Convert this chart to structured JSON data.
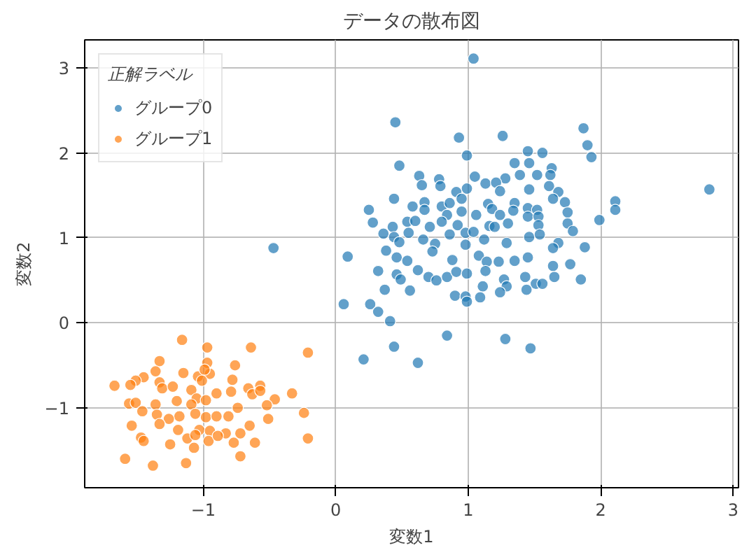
{
  "chart_data": {
    "type": "scatter",
    "title": "データの散布図",
    "xlabel": "変数1",
    "ylabel": "変数2",
    "legend_title": "正解ラベル",
    "legend": "top left",
    "grid": true,
    "marker": "circle",
    "xlim": [
      -1.895,
      3.04
    ],
    "ylim": [
      -1.94,
      3.33
    ],
    "xticks": [
      {
        "value": -1,
        "label": "−1"
      },
      0,
      1,
      2,
      3
    ],
    "yticks": [
      {
        "value": -1,
        "label": "−1"
      },
      0,
      1,
      2,
      3
    ],
    "series": [
      {
        "name": "グループ0",
        "color": "#1f77b4",
        "x": [
          1.04,
          0.45,
          0.93,
          1.26,
          1.87,
          1.9,
          1.93,
          0.99,
          1.45,
          1.56,
          0.48,
          1.46,
          1.35,
          1.63,
          1.62,
          0.63,
          0.78,
          1.05,
          1.28,
          1.39,
          1.52,
          0.65,
          0.79,
          1.13,
          1.21,
          1.61,
          1.46,
          1.68,
          2.82,
          0.91,
          0.99,
          1.24,
          0.44,
          1.64,
          1.73,
          2.11,
          2.11,
          0.67,
          0.8,
          0.86,
          0.95,
          1.15,
          1.35,
          0.25,
          0.58,
          0.67,
          0.95,
          1.18,
          1.34,
          1.45,
          1.52,
          1.75,
          0.84,
          1.06,
          1.24,
          1.45,
          1.53,
          1.75,
          1.99,
          0.28,
          0.54,
          0.6,
          0.71,
          1.16,
          1.2,
          1.3,
          1.53,
          0.8,
          0.92,
          0.43,
          0.55,
          0.66,
          0.86,
          0.98,
          1.04,
          1.12,
          1.46,
          1.54,
          1.79,
          0.36,
          0.44,
          0.48,
          0.75,
          0.98,
          1.29,
          1.68,
          1.88,
          1.64,
          -0.47,
          0.09,
          0.38,
          0.46,
          0.54,
          0.73,
          0.88,
          1.08,
          1.14,
          1.23,
          1.35,
          1.45,
          1.77,
          1.64,
          0.32,
          0.62,
          0.7,
          0.76,
          0.84,
          0.91,
          0.99,
          1.13,
          1.27,
          1.43,
          1.65,
          1.85,
          1.51,
          1.56,
          0.46,
          0.49,
          1.11,
          1.29,
          0.37,
          0.56,
          1.24,
          1.44,
          0.9,
          0.98,
          0.99,
          1.09,
          0.06,
          0.26,
          0.32,
          0.41,
          0.84,
          1.28,
          0.44,
          1.47,
          0.21,
          0.62
        ],
        "values": [
          3.11,
          2.36,
          2.18,
          2.2,
          2.29,
          2.09,
          1.95,
          1.97,
          2.02,
          2.0,
          1.85,
          1.88,
          1.88,
          1.82,
          1.74,
          1.73,
          1.69,
          1.72,
          1.7,
          1.74,
          1.74,
          1.62,
          1.61,
          1.64,
          1.65,
          1.61,
          1.57,
          1.54,
          1.57,
          1.54,
          1.58,
          1.55,
          1.46,
          1.46,
          1.42,
          1.43,
          1.33,
          1.42,
          1.37,
          1.41,
          1.46,
          1.4,
          1.41,
          1.33,
          1.37,
          1.33,
          1.31,
          1.34,
          1.32,
          1.35,
          1.33,
          1.3,
          1.27,
          1.27,
          1.27,
          1.25,
          1.25,
          1.17,
          1.21,
          1.18,
          1.19,
          1.2,
          1.13,
          1.14,
          1.13,
          1.17,
          1.15,
          1.19,
          1.15,
          1.13,
          1.06,
          0.98,
          1.04,
          1.06,
          1.07,
          0.98,
          1.01,
          1.04,
          1.08,
          1.05,
          1.01,
          0.95,
          0.93,
          0.92,
          0.94,
          0.94,
          0.89,
          0.88,
          0.88,
          0.78,
          0.85,
          0.77,
          0.73,
          0.84,
          0.74,
          0.79,
          0.72,
          0.72,
          0.73,
          0.77,
          0.69,
          0.67,
          0.61,
          0.62,
          0.54,
          0.5,
          0.54,
          0.6,
          0.58,
          0.61,
          0.51,
          0.54,
          0.54,
          0.51,
          0.46,
          0.46,
          0.57,
          0.51,
          0.43,
          0.43,
          0.39,
          0.38,
          0.36,
          0.39,
          0.32,
          0.31,
          0.25,
          0.3,
          0.22,
          0.22,
          0.13,
          0.02,
          -0.15,
          -0.19,
          -0.28,
          -0.3,
          -0.43,
          -0.47
        ]
      },
      {
        "name": "グループ1",
        "color": "#ff7f0e",
        "x": [
          -1.16,
          -0.97,
          -0.64,
          -0.21,
          -1.33,
          -0.97,
          -0.76,
          -1.36,
          -1.15,
          -1.04,
          -0.95,
          -0.78,
          -1.45,
          -1.51,
          -1.55,
          -1.67,
          -1.33,
          -1.31,
          -1.23,
          -1.01,
          -0.57,
          -0.66,
          -1.09,
          -0.9,
          -0.79,
          -0.63,
          -0.57,
          -0.33,
          -0.46,
          -1.05,
          -1.2,
          -1.56,
          -1.51,
          -1.36,
          -1.09,
          -0.98,
          -0.74,
          -0.52,
          -1.46,
          -1.35,
          -1.18,
          -1.26,
          -1.06,
          -0.98,
          -0.9,
          -0.81,
          -0.24,
          -1.33,
          -0.51,
          -1.54,
          -1.19,
          -1.03,
          -0.95,
          -0.83,
          -0.72,
          -0.65,
          -1.47,
          -1.45,
          -1.12,
          -1.06,
          -0.96,
          -0.89,
          -0.77,
          -0.61,
          -0.21,
          -1.25,
          -1.07,
          -0.72,
          -1.59,
          -1.13,
          -1.38,
          -0.99
        ],
        "values": [
          -0.2,
          -0.29,
          -0.29,
          -0.35,
          -0.45,
          -0.47,
          -0.5,
          -0.57,
          -0.59,
          -0.63,
          -0.6,
          -0.67,
          -0.64,
          -0.68,
          -0.73,
          -0.74,
          -0.7,
          -0.77,
          -0.75,
          -0.68,
          -0.74,
          -0.77,
          -0.79,
          -0.83,
          -0.81,
          -0.84,
          -0.8,
          -0.83,
          -0.9,
          -0.89,
          -0.92,
          -0.95,
          -0.94,
          -0.96,
          -0.96,
          -0.91,
          -1.0,
          -0.97,
          -1.04,
          -1.08,
          -1.1,
          -1.13,
          -1.07,
          -1.11,
          -1.1,
          -1.1,
          -1.06,
          -1.19,
          -1.13,
          -1.21,
          -1.26,
          -1.26,
          -1.27,
          -1.3,
          -1.3,
          -1.21,
          -1.35,
          -1.39,
          -1.36,
          -1.32,
          -1.39,
          -1.33,
          -1.41,
          -1.41,
          -1.36,
          -1.43,
          -1.47,
          -1.57,
          -1.6,
          -1.65,
          -1.68,
          -0.55
        ]
      }
    ]
  }
}
